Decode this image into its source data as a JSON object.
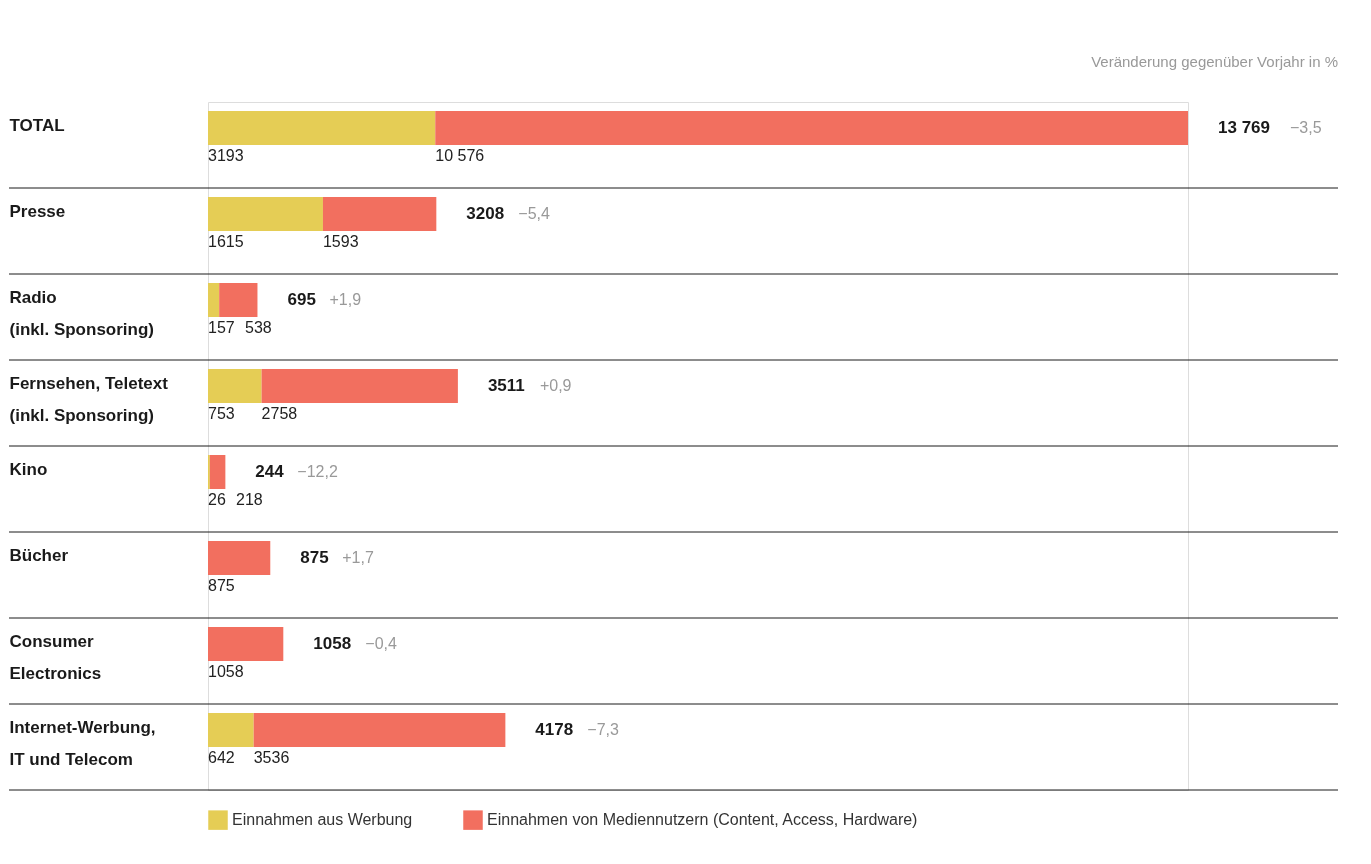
{
  "chart_data": {
    "type": "bar",
    "orientation": "horizontal",
    "stacked": true,
    "grid": "y",
    "legend": "bottom",
    "categories": [
      "TOTAL",
      "Presse",
      "Radio\n(inkl. Sponsoring)",
      "Fernsehen, Teletext\n(inkl. Sponsoring)",
      "Kino",
      "Bücher",
      "Consumer\nElectronics",
      "Internet-Werbung,\nIT und Telecom"
    ],
    "series": [
      {
        "name": "Einnahmen aus Werbung",
        "color": "#e5cd55",
        "values": [
          3193,
          1615,
          157,
          753,
          26,
          null,
          null,
          642
        ],
        "value_labels": [
          "3193",
          "1615",
          "157",
          "753",
          "26",
          null,
          null,
          "642"
        ]
      },
      {
        "name": "Einnahmen von Mediennutzern (Content, Access, Hardware)",
        "color": "#f26f5f",
        "values": [
          10576,
          1593,
          538,
          2758,
          218,
          875,
          1058,
          3536
        ],
        "value_labels": [
          "10 576",
          "1593",
          "538",
          "2758",
          "218",
          "875",
          "1058",
          "3536"
        ]
      }
    ],
    "totals": [
      "13 769",
      "3208",
      "695",
      "3511",
      "244",
      "875",
      "1058",
      "4178"
    ],
    "annotations": [
      "Veränderung gegenüber Vorjahr in %",
      "−3,5",
      "−5,4",
      "+1,9",
      "+0,9",
      "−12,2",
      "+1,7",
      "−0,4",
      "−7,3"
    ]
  }
}
